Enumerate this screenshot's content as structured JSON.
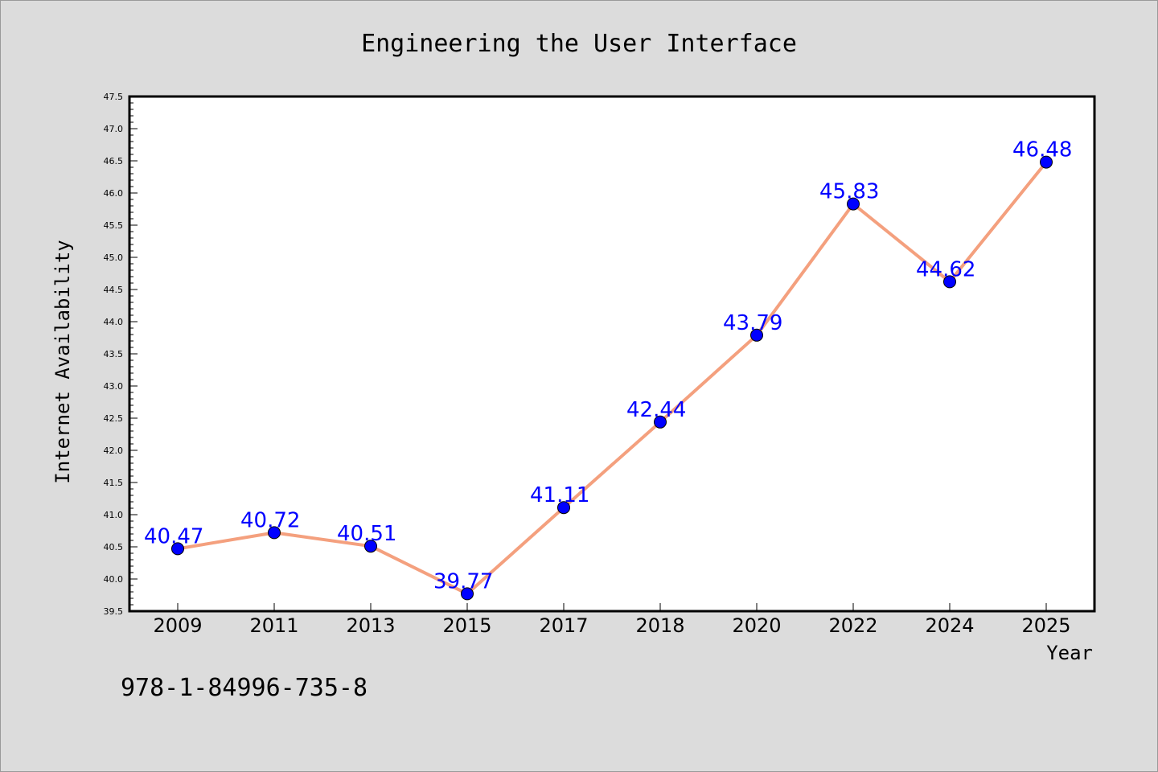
{
  "chart_data": {
    "type": "line",
    "title": "Engineering the User Interface",
    "xlabel": "Year",
    "ylabel": "Internet Availability",
    "categories": [
      "2009",
      "2011",
      "2013",
      "2015",
      "2017",
      "2018",
      "2020",
      "2022",
      "2024",
      "2025"
    ],
    "series": [
      {
        "values": [
          40.47,
          40.72,
          40.51,
          39.77,
          41.11,
          42.44,
          43.79,
          45.83,
          44.62,
          46.48
        ]
      }
    ],
    "data_labels": [
      "40.47",
      "40.72",
      "40.51",
      "39.77",
      "41.11",
      "42.44",
      "43.79",
      "45.83",
      "44.62",
      "46.48"
    ],
    "ylim": [
      39.5,
      47.5
    ],
    "yticks": [
      "39.5",
      "40.0",
      "40.5",
      "41.0",
      "41.5",
      "42.0",
      "42.5",
      "43.0",
      "43.5",
      "44.0",
      "44.5",
      "45.0",
      "45.5",
      "46.0",
      "46.5",
      "47.0",
      "47.5"
    ],
    "grid": false,
    "line_color": "#f4a07e",
    "marker_color": "#0000ff",
    "label_color": "#0000ff"
  },
  "footer": {
    "isbn": "978-1-84996-735-8"
  }
}
